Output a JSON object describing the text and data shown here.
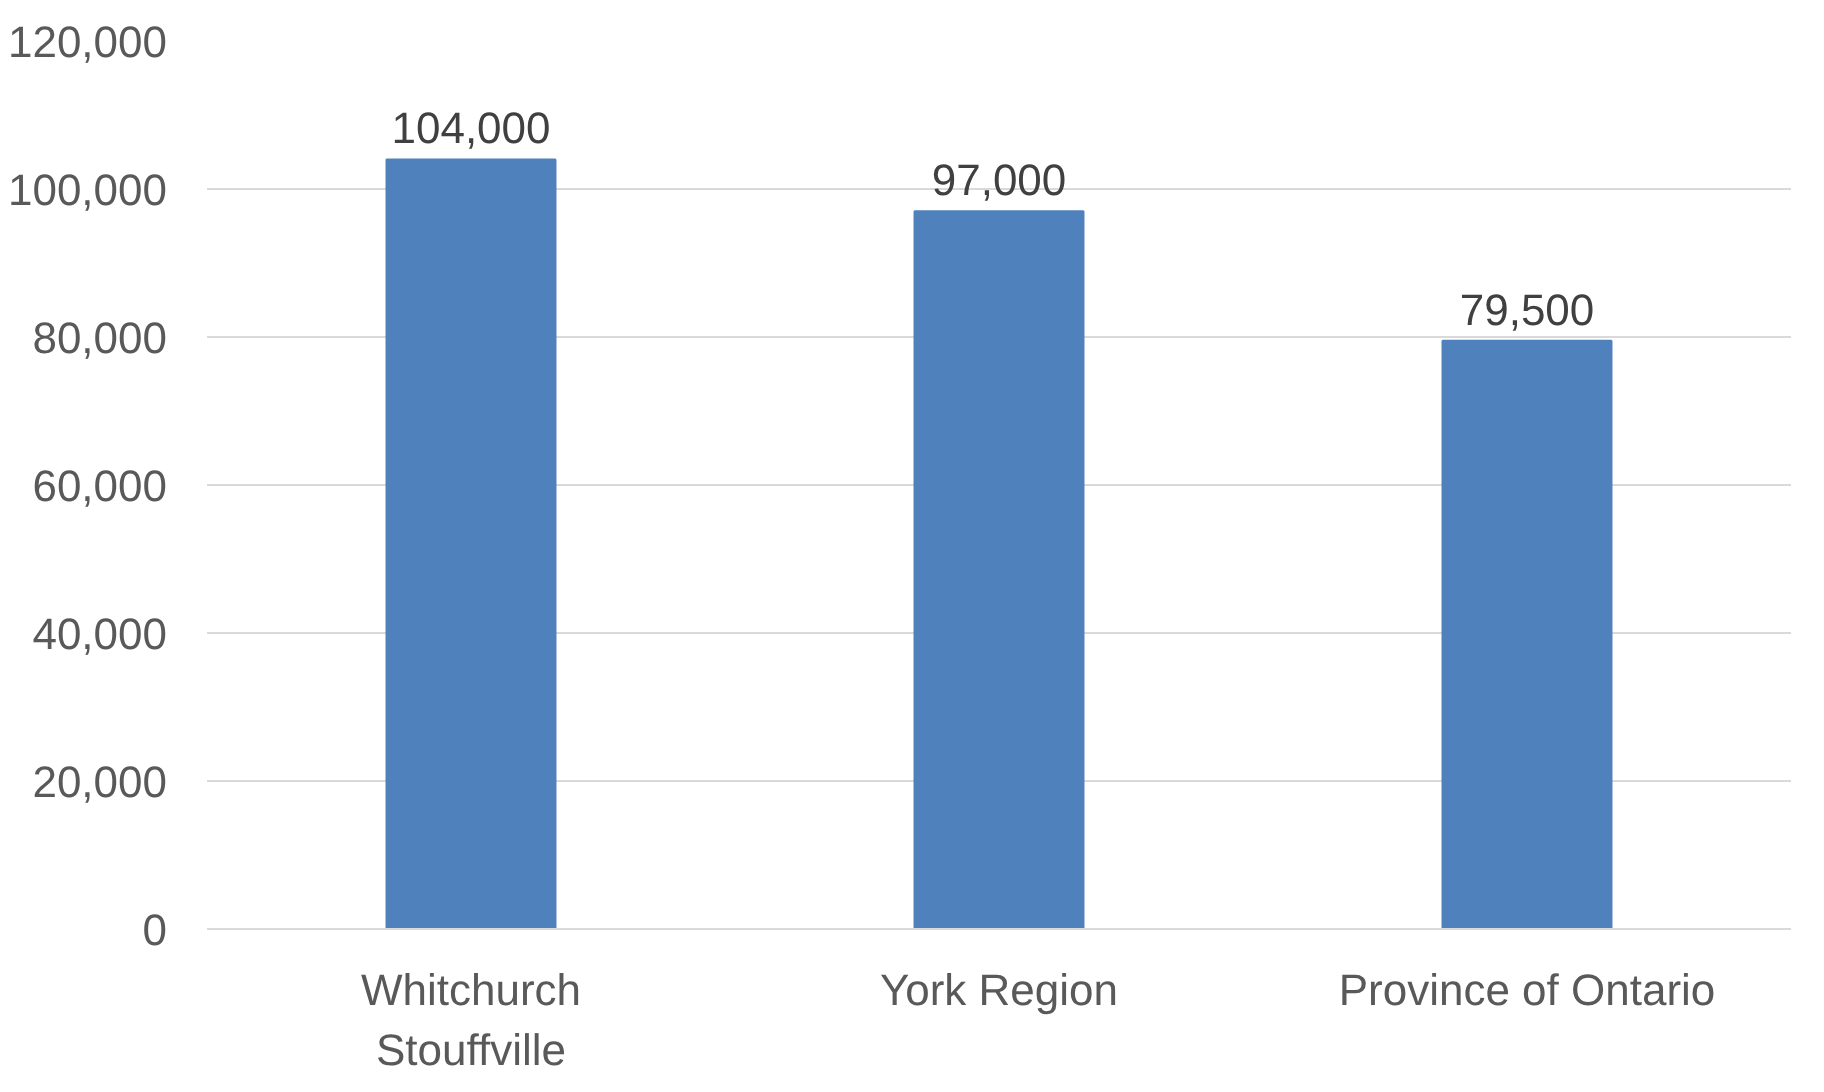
{
  "chart_data": {
    "type": "bar",
    "categories": [
      "Whitchurch\nStouffville",
      "York Region",
      "Province of Ontario"
    ],
    "values": [
      104000,
      97000,
      79500
    ],
    "color": "#4f81bd",
    "ylim": [
      0,
      120000
    ],
    "yticks": [
      {
        "value": 0,
        "label": "0"
      },
      {
        "value": 20000,
        "label": "20,000"
      },
      {
        "value": 40000,
        "label": "40,000"
      },
      {
        "value": 60000,
        "label": "60,000"
      },
      {
        "value": 80000,
        "label": "80,000"
      },
      {
        "value": 100000,
        "label": "100,000"
      },
      {
        "value": 120000,
        "label": "120,000"
      }
    ],
    "grid": "y",
    "value_labels": [
      "104,000",
      "97,000",
      "79,500"
    ]
  }
}
